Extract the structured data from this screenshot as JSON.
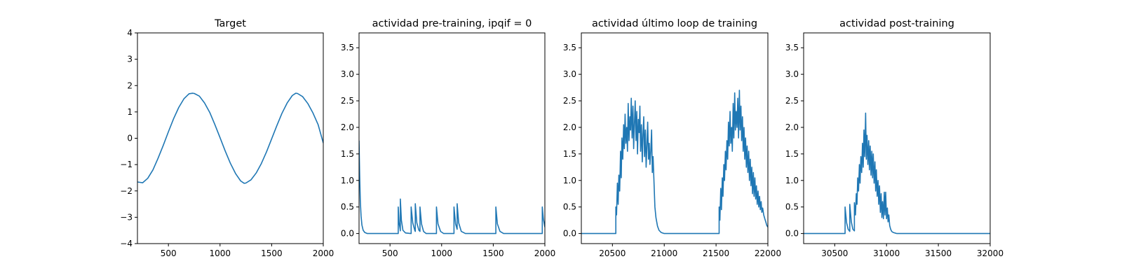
{
  "colors": {
    "series": "#1f77b4",
    "background": "#ffffff",
    "axes": "#000000"
  },
  "chart_data": [
    {
      "type": "line",
      "title": "Target",
      "xlabel": "",
      "ylabel": "",
      "xlim": [
        200,
        2000
      ],
      "ylim": [
        -4,
        4
      ],
      "xticks": [
        500,
        1000,
        1500,
        2000
      ],
      "yticks": [
        -4,
        -3,
        -2,
        -1,
        0,
        1,
        2,
        3,
        4
      ],
      "xtick_labels": [
        "500",
        "1000",
        "1500",
        "2000"
      ],
      "ytick_labels": [
        "−4",
        "−3",
        "−2",
        "−1",
        "0",
        "1",
        "2",
        "3",
        "4"
      ],
      "grid": false,
      "series": [
        {
          "x": [
            200,
            250,
            300,
            350,
            400,
            450,
            500,
            550,
            600,
            650,
            700,
            733,
            750,
            800,
            850,
            900,
            950,
            1000,
            1050,
            1100,
            1150,
            1200,
            1233,
            1250,
            1300,
            1350,
            1400,
            1450,
            1500,
            1550,
            1600,
            1650,
            1700,
            1733,
            1750,
            1800,
            1850,
            1900,
            1950,
            2000
          ],
          "y": [
            -1.66,
            -1.69,
            -1.52,
            -1.2,
            -0.76,
            -0.27,
            0.25,
            0.74,
            1.17,
            1.5,
            1.69,
            1.71,
            1.7,
            1.6,
            1.34,
            0.98,
            0.52,
            0.02,
            -0.48,
            -0.95,
            -1.34,
            -1.62,
            -1.71,
            -1.7,
            -1.58,
            -1.32,
            -0.96,
            -0.52,
            -0.02,
            0.48,
            0.95,
            1.34,
            1.62,
            1.71,
            1.7,
            1.58,
            1.32,
            0.96,
            0.52,
            -0.18
          ]
        }
      ]
    },
    {
      "type": "line",
      "title": "actividad pre-training, ipqif = 0",
      "xlabel": "",
      "ylabel": "",
      "xlim": [
        200,
        2000
      ],
      "ylim": [
        -0.19,
        3.78
      ],
      "xticks": [
        500,
        1000,
        1500,
        2000
      ],
      "yticks": [
        0.0,
        0.5,
        1.0,
        1.5,
        2.0,
        2.5,
        3.0,
        3.5
      ],
      "xtick_labels": [
        "500",
        "1000",
        "1500",
        "2000"
      ],
      "ytick_labels": [
        "0.0",
        "0.5",
        "1.0",
        "1.5",
        "2.0",
        "2.5",
        "3.0",
        "3.5"
      ],
      "grid": false,
      "series": [
        {
          "x": [
            200,
            206,
            212,
            220,
            228,
            240,
            256,
            280,
            320,
            580,
            580,
            588,
            598,
            600,
            600,
            610,
            625,
            650,
            700,
            705,
            705,
            720,
            740,
            745,
            745,
            760,
            780,
            790,
            790,
            805,
            825,
            850,
            950,
            950,
            965,
            990,
            1020,
            1120,
            1120,
            1135,
            1150,
            1150,
            1165,
            1190,
            1230,
            1525,
            1525,
            1540,
            1565,
            1600,
            1975,
            1975,
            1985,
            2000
          ],
          "y": [
            1.75,
            1.1,
            0.62,
            0.33,
            0.16,
            0.06,
            0.02,
            0.0,
            0.0,
            0.0,
            0.5,
            0.2,
            0.08,
            0.05,
            0.65,
            0.25,
            0.06,
            0.01,
            0.0,
            0.0,
            0.5,
            0.2,
            0.06,
            0.04,
            0.56,
            0.2,
            0.06,
            0.04,
            0.5,
            0.18,
            0.04,
            0.0,
            0.0,
            0.5,
            0.18,
            0.04,
            0.0,
            0.0,
            0.5,
            0.18,
            0.08,
            0.56,
            0.2,
            0.04,
            0.0,
            0.0,
            0.5,
            0.18,
            0.04,
            0.0,
            0.0,
            0.5,
            0.28,
            0.12
          ]
        }
      ]
    },
    {
      "type": "line",
      "title": "actividad último loop de training",
      "xlabel": "",
      "ylabel": "",
      "xlim": [
        20200,
        22000
      ],
      "ylim": [
        -0.19,
        3.78
      ],
      "xticks": [
        20500,
        21000,
        21500,
        22000
      ],
      "yticks": [
        0.0,
        0.5,
        1.0,
        1.5,
        2.0,
        2.5,
        3.0,
        3.5
      ],
      "xtick_labels": [
        "20500",
        "21000",
        "21500",
        "22000"
      ],
      "ytick_labels": [
        "0.0",
        "0.5",
        "1.0",
        "1.5",
        "2.0",
        "2.5",
        "3.0",
        "3.5"
      ],
      "grid": false,
      "series": [
        {
          "x": [
            20200,
            20533,
            20533,
            20540,
            20548,
            20555,
            20562,
            20570,
            20578,
            20585,
            20592,
            20600,
            20608,
            20615,
            20622,
            20630,
            20638,
            20645,
            20652,
            20660,
            20668,
            20675,
            20682,
            20690,
            20698,
            20705,
            20712,
            20720,
            20728,
            20735,
            20742,
            20750,
            20758,
            20765,
            20772,
            20780,
            20788,
            20795,
            20802,
            20810,
            20818,
            20825,
            20832,
            20840,
            20848,
            20855,
            20862,
            20870,
            20878,
            20885,
            20892,
            20900,
            20910,
            20920,
            20935,
            20950,
            20970,
            21000,
            21050,
            21530,
            21530,
            21537,
            21545,
            21552,
            21560,
            21567,
            21575,
            21582,
            21590,
            21597,
            21605,
            21612,
            21620,
            21627,
            21635,
            21642,
            21650,
            21657,
            21665,
            21672,
            21680,
            21687,
            21695,
            21702,
            21710,
            21717,
            21725,
            21732,
            21740,
            21747,
            21755,
            21762,
            21770,
            21777,
            21785,
            21792,
            21800,
            21807,
            21815,
            21822,
            21830,
            21837,
            21845,
            21852,
            21860,
            21867,
            21875,
            21882,
            21890,
            21897,
            21905,
            21912,
            21920,
            21927,
            21935,
            21942,
            21950,
            21960,
            21970,
            21980,
            21990,
            22000
          ],
          "y": [
            0.0,
            0.0,
            0.5,
            0.35,
            0.95,
            0.55,
            1.1,
            0.8,
            1.55,
            1.05,
            1.8,
            1.4,
            2.05,
            1.6,
            2.25,
            1.7,
            2.0,
            1.55,
            2.45,
            1.75,
            2.2,
            1.95,
            2.55,
            1.8,
            2.4,
            1.6,
            2.05,
            2.5,
            1.75,
            2.3,
            1.5,
            2.15,
            1.9,
            2.4,
            1.55,
            2.05,
            1.35,
            1.85,
            2.2,
            1.45,
            1.95,
            1.25,
            1.6,
            2.1,
            1.4,
            1.7,
            1.3,
            1.55,
            1.95,
            1.15,
            1.45,
            1.05,
            0.5,
            0.3,
            0.14,
            0.06,
            0.02,
            0.0,
            0.0,
            0.0,
            0.5,
            0.25,
            0.85,
            0.45,
            1.05,
            0.7,
            1.3,
            1.0,
            1.55,
            1.2,
            1.75,
            1.4,
            2.1,
            1.65,
            2.3,
            1.7,
            2.0,
            1.55,
            2.45,
            1.8,
            2.65,
            1.95,
            2.3,
            2.0,
            2.55,
            1.8,
            2.7,
            1.95,
            2.4,
            1.75,
            2.2,
            1.55,
            2.0,
            1.4,
            1.8,
            1.25,
            1.65,
            1.15,
            1.55,
            1.0,
            1.4,
            0.9,
            1.25,
            0.75,
            1.15,
            0.7,
            1.05,
            0.65,
            0.9,
            0.55,
            0.8,
            0.5,
            0.7,
            0.45,
            0.6,
            0.4,
            0.48,
            0.35,
            0.28,
            0.22,
            0.15,
            0.12
          ]
        }
      ]
    },
    {
      "type": "line",
      "title": "actividad post-training",
      "xlabel": "",
      "ylabel": "",
      "xlim": [
        30200,
        32000
      ],
      "ylim": [
        -0.19,
        3.78
      ],
      "xticks": [
        30500,
        31000,
        31500,
        32000
      ],
      "yticks": [
        0.0,
        0.5,
        1.0,
        1.5,
        2.0,
        2.5,
        3.0,
        3.5
      ],
      "xtick_labels": [
        "30500",
        "31000",
        "31500",
        "32000"
      ],
      "ytick_labels": [
        "0.0",
        "0.5",
        "1.0",
        "1.5",
        "2.0",
        "2.5",
        "3.0",
        "3.5"
      ],
      "grid": false,
      "series": [
        {
          "x": [
            30200,
            30600,
            30600,
            30615,
            30630,
            30645,
            30645,
            30660,
            30675,
            30690,
            30690,
            30700,
            30708,
            30715,
            30722,
            30730,
            30738,
            30745,
            30752,
            30760,
            30768,
            30775,
            30782,
            30790,
            30798,
            30805,
            30812,
            30820,
            30828,
            30835,
            30842,
            30850,
            30858,
            30865,
            30872,
            30880,
            30888,
            30895,
            30902,
            30910,
            30918,
            30925,
            30932,
            30940,
            30948,
            30955,
            30962,
            30970,
            30978,
            30985,
            30992,
            31000,
            31008,
            31015,
            31022,
            31030,
            31040,
            31050,
            31065,
            31080,
            31100,
            31130,
            31180,
            32000
          ],
          "y": [
            0.0,
            0.0,
            0.5,
            0.2,
            0.08,
            0.04,
            0.55,
            0.22,
            0.08,
            0.05,
            0.58,
            0.35,
            0.75,
            0.55,
            1.05,
            0.8,
            1.3,
            0.95,
            1.45,
            1.15,
            1.7,
            1.25,
            1.95,
            1.45,
            2.27,
            1.4,
            1.85,
            1.3,
            1.75,
            1.2,
            1.65,
            1.1,
            1.55,
            1.05,
            1.5,
            0.95,
            1.35,
            0.8,
            1.2,
            0.7,
            1.0,
            0.55,
            0.9,
            0.4,
            0.75,
            0.3,
            0.6,
            0.28,
            0.78,
            0.35,
            0.78,
            0.28,
            0.48,
            0.22,
            0.35,
            0.15,
            0.08,
            0.04,
            0.02,
            0.01,
            0.0,
            0.0,
            0.0,
            0.0
          ]
        }
      ]
    }
  ]
}
